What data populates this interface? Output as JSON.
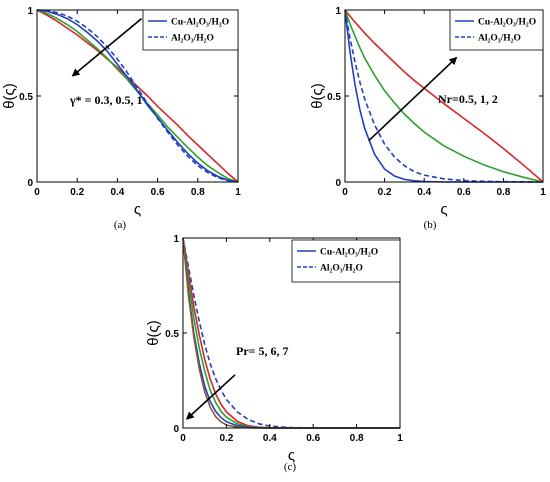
{
  "chart_data": [
    {
      "type": "line",
      "panel": "(a)",
      "xlabel": "ς",
      "ylabel": "θ(ς)",
      "xlim": [
        0,
        1
      ],
      "ylim": [
        0,
        1
      ],
      "xticks": [
        "0",
        "0.2",
        "0.4",
        "0.6",
        "0.8",
        "1"
      ],
      "yticks": [
        "0",
        "0.5",
        "1"
      ],
      "legend": {
        "position": "top-right",
        "entries": [
          "Cu-Al₂O₃/H₂O",
          "Al₂O₃/H₂O"
        ]
      },
      "annotation": {
        "text": "γ* = 0.3, 0.5, 1",
        "arrow_from": [
          0.52,
          0.95
        ],
        "arrow_to": [
          0.18,
          0.62
        ]
      },
      "x": [
        0,
        0.05,
        0.1,
        0.15,
        0.2,
        0.25,
        0.3,
        0.35,
        0.4,
        0.45,
        0.5,
        0.55,
        0.6,
        0.65,
        0.7,
        0.75,
        0.8,
        0.85,
        0.9,
        0.95,
        1
      ],
      "series": [
        {
          "color": "#d62728",
          "style": "solid",
          "values": [
            1,
            0.97,
            0.935,
            0.895,
            0.855,
            0.81,
            0.765,
            0.715,
            0.665,
            0.61,
            0.555,
            0.5,
            0.44,
            0.385,
            0.33,
            0.27,
            0.215,
            0.16,
            0.105,
            0.05,
            0
          ]
        },
        {
          "color": "#2ca02c",
          "style": "solid",
          "values": [
            1,
            0.98,
            0.95,
            0.915,
            0.875,
            0.825,
            0.775,
            0.72,
            0.655,
            0.595,
            0.525,
            0.455,
            0.39,
            0.32,
            0.26,
            0.2,
            0.145,
            0.095,
            0.055,
            0.02,
            0
          ]
        },
        {
          "color": "#1f3fbf",
          "style": "solid",
          "values": [
            1,
            0.993,
            0.975,
            0.95,
            0.915,
            0.87,
            0.82,
            0.76,
            0.685,
            0.61,
            0.53,
            0.445,
            0.375,
            0.3,
            0.23,
            0.165,
            0.11,
            0.065,
            0.032,
            0.01,
            0
          ]
        },
        {
          "color": "#1f3fbf",
          "style": "dashed",
          "values": [
            1,
            0.996,
            0.985,
            0.965,
            0.935,
            0.895,
            0.845,
            0.785,
            0.715,
            0.635,
            0.545,
            0.455,
            0.37,
            0.29,
            0.215,
            0.15,
            0.095,
            0.055,
            0.025,
            0.008,
            0
          ]
        }
      ]
    },
    {
      "type": "line",
      "panel": "(b)",
      "xlabel": "ς",
      "ylabel": "θ(ς)",
      "xlim": [
        0,
        1
      ],
      "ylim": [
        0,
        1
      ],
      "xticks": [
        "0",
        "0.2",
        "0.4",
        "0.6",
        "0.8",
        "1"
      ],
      "yticks": [
        "0",
        "0.5",
        "1"
      ],
      "legend": {
        "position": "top-right",
        "entries": [
          "Cu-Al₂O₃/H₂O",
          "Al₂O₃/H₂O"
        ]
      },
      "annotation": {
        "text": "Nr=0.5, 1, 2",
        "arrow_from": [
          0.12,
          0.24
        ],
        "arrow_to": [
          0.56,
          0.72
        ]
      },
      "x": [
        0,
        0.025,
        0.05,
        0.075,
        0.1,
        0.15,
        0.2,
        0.25,
        0.3,
        0.35,
        0.4,
        0.5,
        0.6,
        0.7,
        0.8,
        0.9,
        1
      ],
      "series": [
        {
          "color": "#1f3fbf",
          "style": "solid",
          "values": [
            1,
            0.76,
            0.57,
            0.42,
            0.31,
            0.16,
            0.075,
            0.035,
            0.015,
            0.007,
            0.003,
            0,
            0,
            0,
            0,
            0,
            0
          ]
        },
        {
          "color": "#1f3fbf",
          "style": "dashed",
          "values": [
            1,
            0.84,
            0.7,
            0.58,
            0.48,
            0.33,
            0.22,
            0.145,
            0.095,
            0.06,
            0.04,
            0.018,
            0.008,
            0.004,
            0.002,
            0.001,
            0
          ]
        },
        {
          "color": "#2ca02c",
          "style": "solid",
          "values": [
            1,
            0.92,
            0.85,
            0.78,
            0.72,
            0.62,
            0.53,
            0.46,
            0.395,
            0.34,
            0.29,
            0.21,
            0.15,
            0.1,
            0.06,
            0.028,
            0
          ]
        },
        {
          "color": "#d62728",
          "style": "solid",
          "values": [
            1,
            0.965,
            0.93,
            0.897,
            0.865,
            0.805,
            0.75,
            0.695,
            0.64,
            0.59,
            0.545,
            0.455,
            0.37,
            0.285,
            0.195,
            0.1,
            0
          ]
        }
      ]
    },
    {
      "type": "line",
      "panel": "(c)",
      "xlabel": "ς",
      "ylabel": "θ(ς)",
      "xlim": [
        0,
        1
      ],
      "ylim": [
        0,
        1
      ],
      "xticks": [
        "0",
        "0.2",
        "0.4",
        "0.6",
        "0.8",
        "1"
      ],
      "yticks": [
        "0",
        "0.5",
        "1"
      ],
      "legend": {
        "position": "top-right",
        "entries": [
          "Cu-Al₂O₃/H₂O",
          "Al₂O₃/H₂O"
        ]
      },
      "annotation": {
        "text": "Pr= 5, 6, 7",
        "arrow_from": [
          0.24,
          0.28
        ],
        "arrow_to": [
          0.02,
          0.05
        ]
      },
      "x": [
        0,
        0.025,
        0.05,
        0.075,
        0.1,
        0.125,
        0.15,
        0.175,
        0.2,
        0.25,
        0.3,
        0.35,
        0.4,
        0.5,
        0.6,
        0.8,
        1
      ],
      "series": [
        {
          "color": "#1f3fbf",
          "style": "dashed",
          "values": [
            1,
            0.85,
            0.7,
            0.56,
            0.44,
            0.34,
            0.26,
            0.2,
            0.15,
            0.085,
            0.045,
            0.022,
            0.01,
            0.002,
            0,
            0,
            0
          ]
        },
        {
          "color": "#d62728",
          "style": "solid",
          "values": [
            1,
            0.82,
            0.64,
            0.49,
            0.36,
            0.26,
            0.18,
            0.125,
            0.085,
            0.035,
            0.012,
            0.004,
            0.001,
            0,
            0,
            0,
            0
          ]
        },
        {
          "color": "#2ca02c",
          "style": "solid",
          "values": [
            1,
            0.78,
            0.58,
            0.42,
            0.3,
            0.2,
            0.135,
            0.088,
            0.057,
            0.022,
            0.008,
            0.002,
            0,
            0,
            0,
            0,
            0
          ]
        },
        {
          "color": "#1f3fbf",
          "style": "solid",
          "values": [
            1,
            0.72,
            0.5,
            0.34,
            0.22,
            0.14,
            0.088,
            0.055,
            0.033,
            0.012,
            0.004,
            0.001,
            0,
            0,
            0,
            0,
            0
          ]
        },
        {
          "color": "#8b5a2b",
          "style": "solid",
          "values": [
            1,
            0.7,
            0.48,
            0.31,
            0.19,
            0.11,
            0.06,
            0.032,
            0.016,
            0.004,
            0.001,
            0,
            0,
            0,
            0,
            0,
            0
          ]
        }
      ]
    }
  ]
}
